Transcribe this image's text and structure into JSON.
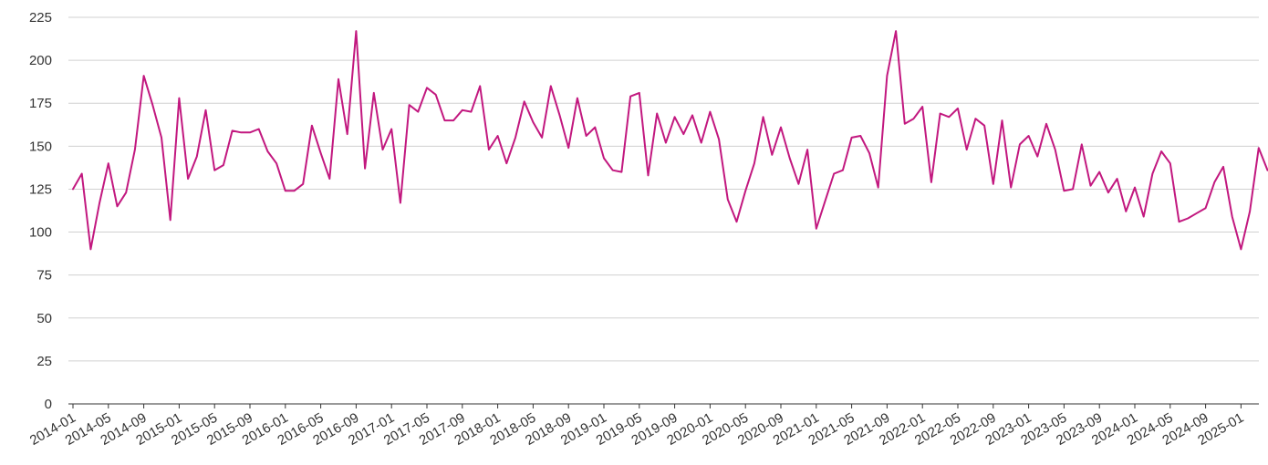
{
  "chart_data": {
    "type": "line",
    "title": "",
    "xlabel": "",
    "ylabel": "",
    "ylim": [
      0,
      225
    ],
    "yticks": [
      0,
      25,
      50,
      75,
      100,
      125,
      150,
      175,
      200,
      225
    ],
    "ytick_labels": [
      "0",
      "25",
      "50",
      "75",
      "100",
      "125",
      "150",
      "175",
      "200",
      "225"
    ],
    "xtick_labels": [
      "2014-01",
      "2014-05",
      "2014-09",
      "2015-01",
      "2015-05",
      "2015-09",
      "2016-01",
      "2016-05",
      "2016-09",
      "2017-01",
      "2017-05",
      "2017-09",
      "2018-01",
      "2018-05",
      "2018-09",
      "2019-01",
      "2019-05",
      "2019-09",
      "2020-01",
      "2020-05",
      "2020-09",
      "2021-01",
      "2021-05",
      "2021-09",
      "2022-01",
      "2022-05",
      "2022-09",
      "2023-01",
      "2023-05",
      "2023-09",
      "2024-01",
      "2024-05",
      "2024-09",
      "2025-01"
    ],
    "x_start": "2014-01",
    "grid": true,
    "legend": "none",
    "colors": {
      "line": "#c2187f",
      "grid": "#d0d0d0",
      "axis": "#333333"
    },
    "series": [
      {
        "values": [
          125,
          134,
          90,
          117,
          140,
          115,
          123,
          148,
          191,
          174,
          155,
          107,
          178,
          131,
          144,
          171,
          136,
          139,
          159,
          158,
          158,
          160,
          147,
          140,
          124,
          124,
          128,
          162,
          146,
          131,
          189,
          157,
          217,
          137,
          181,
          148,
          160,
          117,
          174,
          170,
          184,
          180,
          165,
          165,
          171,
          170,
          185,
          148,
          156,
          140,
          155,
          176,
          164,
          155,
          185,
          168,
          149,
          178,
          156,
          161,
          143,
          136,
          135,
          179,
          181,
          133,
          169,
          152,
          167,
          157,
          168,
          152,
          170,
          154,
          119,
          106,
          124,
          140,
          167,
          145,
          161,
          143,
          128,
          148,
          102,
          118,
          134,
          136,
          155,
          156,
          146,
          126,
          191,
          217,
          163,
          166,
          173,
          129,
          169,
          167,
          172,
          148,
          166,
          162,
          128,
          165,
          126,
          151,
          156,
          144,
          163,
          148,
          124,
          125,
          151,
          127,
          135,
          123,
          131,
          112,
          126,
          109,
          134,
          147,
          140,
          106,
          108,
          111,
          114,
          129,
          138,
          109,
          90,
          112,
          149,
          136
        ]
      }
    ]
  }
}
